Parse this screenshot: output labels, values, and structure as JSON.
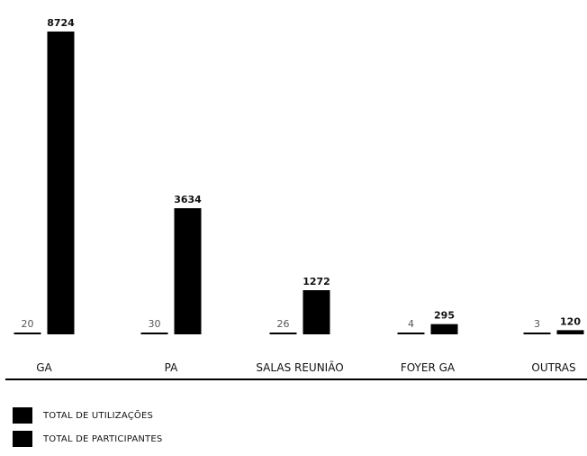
{
  "chart_data": {
    "type": "bar",
    "categories": [
      "GA",
      "PA",
      "SALAS REUNIÃO",
      "FOYER GA",
      "OUTRAS"
    ],
    "series": [
      {
        "name": "TOTAL DE UTILIZAÇÕES",
        "values": [
          20,
          30,
          26,
          4,
          3
        ],
        "color": "#000000"
      },
      {
        "name": "TOTAL DE PARTICIPANTES",
        "values": [
          8724,
          3634,
          1272,
          295,
          120
        ],
        "color": "#000000"
      }
    ],
    "grid": false,
    "legend_position": "bottom-left"
  },
  "legend": {
    "items": [
      {
        "label": "TOTAL DE UTILIZAÇÕES"
      },
      {
        "label": "TOTAL DE PARTICIPANTES"
      }
    ]
  }
}
